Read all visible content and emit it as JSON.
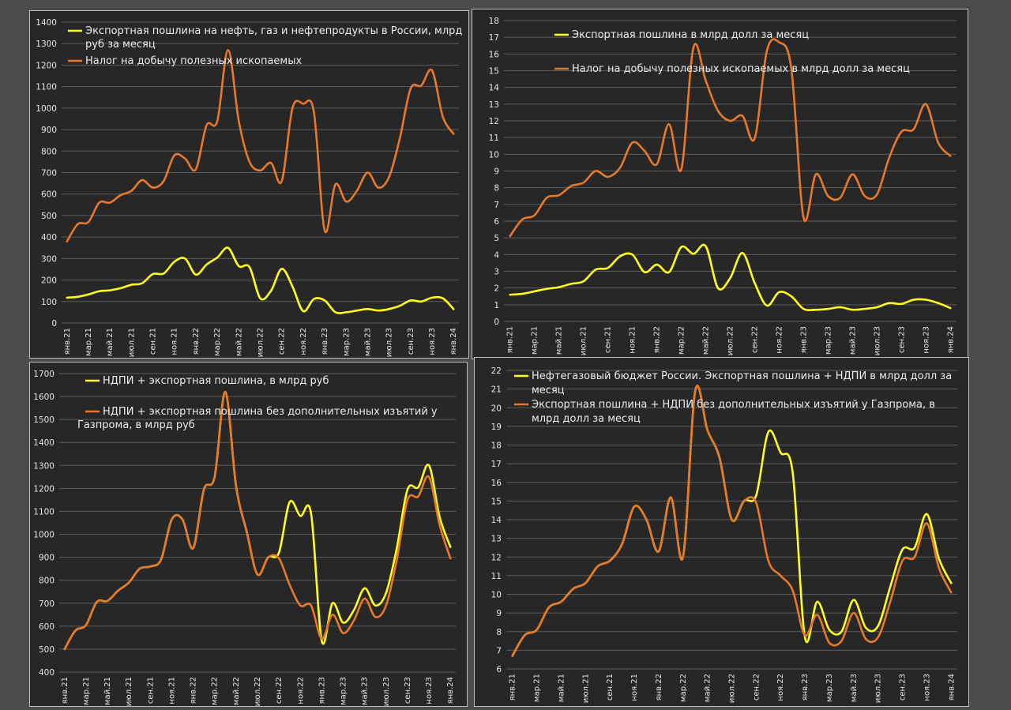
{
  "colors": {
    "yellow": "#ffff1a",
    "orange": "#e8782a",
    "grid": "#5c5c5c",
    "text": "#e4e4e4"
  },
  "chart_data": [
    {
      "type": "line",
      "x": [
        "янв.21",
        "фев.21",
        "мар.21",
        "апр.21",
        "май.21",
        "июн.21",
        "июл.21",
        "авг.21",
        "сен.21",
        "окт.21",
        "ноя.21",
        "дек.21",
        "янв.22",
        "фев.22",
        "мар.22",
        "апр.22",
        "май.22",
        "июн.22",
        "июл.22",
        "авг.22",
        "сен.22",
        "окт.22",
        "ноя.22",
        "дек.22",
        "янв.23",
        "фев.23",
        "мар.23",
        "апр.23",
        "май.23",
        "июн.23",
        "июл.23",
        "авг.23",
        "сен.23",
        "окт.23",
        "ноя.23",
        "дек.23",
        "янв.24"
      ],
      "xticks": [
        "янв.21",
        "мар.21",
        "май.21",
        "июл.21",
        "сен.21",
        "ноя.21",
        "янв.22",
        "мар.22",
        "май.22",
        "июл.22",
        "сен.22",
        "ноя.22",
        "янв.23",
        "мар.23",
        "май.23",
        "июл.23",
        "сен.23",
        "ноя.23",
        "янв.24"
      ],
      "ylim": [
        0,
        1400
      ],
      "yticks": [
        0,
        100,
        200,
        300,
        400,
        500,
        600,
        700,
        800,
        900,
        1000,
        1100,
        1200,
        1300,
        1400
      ],
      "grid": true,
      "legend_position": "top-left",
      "series": [
        {
          "name": "Экспортная пошлина на нефть, газ и нефтепродукты в России, млрд руб за месяц",
          "legend_lines": [
            "Экспортная пошлина на нефть, газ и нефтепродукты в России, млрд",
            "руб за месяц"
          ],
          "color": "#ffff1a",
          "values": [
            118,
            122,
            133,
            148,
            152,
            162,
            178,
            185,
            228,
            230,
            285,
            300,
            225,
            272,
            305,
            350,
            265,
            260,
            115,
            150,
            252,
            170,
            55,
            112,
            105,
            50,
            50,
            58,
            65,
            58,
            65,
            80,
            105,
            100,
            118,
            115,
            65
          ]
        },
        {
          "name": "Налог на добычу полезных ископаемых",
          "legend_lines": [
            "Налог на добычу полезных ископаемых"
          ],
          "color": "#e8782a",
          "values": [
            380,
            460,
            470,
            560,
            560,
            595,
            615,
            665,
            630,
            660,
            780,
            765,
            715,
            920,
            940,
            1270,
            940,
            750,
            710,
            745,
            660,
            1000,
            1020,
            980,
            430,
            645,
            565,
            615,
            700,
            630,
            680,
            860,
            1090,
            1105,
            1175,
            960,
            880
          ]
        }
      ]
    },
    {
      "type": "line",
      "x": [
        "янв.21",
        "фев.21",
        "мар.21",
        "апр.21",
        "май.21",
        "июн.21",
        "июл.21",
        "авг.21",
        "сен.21",
        "окт.21",
        "ноя.21",
        "дек.21",
        "янв.22",
        "фев.22",
        "мар.22",
        "апр.22",
        "май.22",
        "июн.22",
        "июл.22",
        "авг.22",
        "сен.22",
        "окт.22",
        "ноя.22",
        "дек.22",
        "янв.23",
        "фев.23",
        "мар.23",
        "апр.23",
        "май.23",
        "июн.23",
        "июл.23",
        "авг.23",
        "сен.23",
        "окт.23",
        "ноя.23",
        "дек.23",
        "янв.24"
      ],
      "xticks": [
        "янв.21",
        "мар.21",
        "май.21",
        "июл.21",
        "сен.21",
        "ноя.21",
        "янв.22",
        "мар.22",
        "май.22",
        "июл.22",
        "сен.22",
        "ноя.22",
        "янв.23",
        "мар.23",
        "май.23",
        "июл.23",
        "сен.23",
        "ноя.23",
        "янв.24"
      ],
      "ylim": [
        0,
        18
      ],
      "yticks": [
        0,
        1,
        2,
        3,
        4,
        5,
        6,
        7,
        8,
        9,
        10,
        11,
        12,
        13,
        14,
        15,
        16,
        17,
        18
      ],
      "grid": true,
      "legend_position": "top",
      "series": [
        {
          "name": "Экспортная пошлина в млрд долл за месяц",
          "legend_lines": [
            "Экспортная пошлина в млрд долл за месяц"
          ],
          "color": "#ffff1a",
          "values": [
            1.6,
            1.65,
            1.8,
            1.95,
            2.05,
            2.25,
            2.4,
            3.1,
            3.2,
            3.9,
            4.0,
            2.95,
            3.4,
            2.95,
            4.45,
            4.05,
            4.5,
            2.0,
            2.6,
            4.1,
            2.3,
            0.95,
            1.75,
            1.5,
            0.75,
            0.7,
            0.75,
            0.85,
            0.7,
            0.75,
            0.85,
            1.1,
            1.05,
            1.3,
            1.3,
            1.1,
            0.8
          ]
        },
        {
          "name": "Налог на добычу полезных ископаемых в млрд долл за месяц",
          "legend_lines": [
            "Налог на добычу полезных ископаемых в млрд долл за месяц"
          ],
          "color": "#e8782a",
          "values": [
            5.1,
            6.1,
            6.35,
            7.4,
            7.55,
            8.1,
            8.3,
            9.0,
            8.65,
            9.2,
            10.7,
            10.2,
            9.4,
            11.8,
            9.1,
            16.4,
            14.4,
            12.6,
            12.0,
            12.3,
            10.95,
            16.2,
            16.7,
            15.1,
            6.2,
            8.8,
            7.5,
            7.4,
            8.8,
            7.5,
            7.6,
            9.8,
            11.35,
            11.5,
            13.0,
            10.7,
            9.9
          ]
        }
      ]
    },
    {
      "type": "line",
      "x": [
        "янв.21",
        "фев.21",
        "мар.21",
        "апр.21",
        "май.21",
        "июн.21",
        "июл.21",
        "авг.21",
        "сен.21",
        "окт.21",
        "ноя.21",
        "дек.21",
        "янв.22",
        "фев.22",
        "мар.22",
        "апр.22",
        "май.22",
        "июн.22",
        "июл.22",
        "авг.22",
        "сен.22",
        "окт.22",
        "ноя.22",
        "дек.22",
        "янв.23",
        "фев.23",
        "мар.23",
        "апр.23",
        "май.23",
        "июн.23",
        "июл.23",
        "авг.23",
        "сен.23",
        "окт.23",
        "ноя.23",
        "дек.23",
        "янв.24"
      ],
      "xticks": [
        "янв.21",
        "мар.21",
        "май.21",
        "июл.21",
        "сен.21",
        "ноя.21",
        "янв.22",
        "мар.22",
        "май.22",
        "июл.22",
        "сен.22",
        "ноя.22",
        "янв.23",
        "мар.23",
        "май.23",
        "июл.23",
        "сен.23",
        "ноя.23",
        "янв.24"
      ],
      "ylim": [
        400,
        1700
      ],
      "yticks": [
        400,
        500,
        600,
        700,
        800,
        900,
        1000,
        1100,
        1200,
        1300,
        1400,
        1500,
        1600,
        1700
      ],
      "grid": true,
      "legend_position": "top",
      "series": [
        {
          "name": "НДПИ + экспортная пошлина, в млрд руб",
          "legend_lines": [
            "НДПИ + экспортная пошлина, в млрд руб"
          ],
          "color": "#ffff1a",
          "values": [
            500,
            580,
            605,
            705,
            710,
            755,
            790,
            850,
            860,
            890,
            1065,
            1065,
            940,
            1195,
            1250,
            1620,
            1210,
            1010,
            825,
            900,
            920,
            1140,
            1080,
            1090,
            535,
            700,
            615,
            670,
            765,
            690,
            745,
            940,
            1195,
            1205,
            1300,
            1075,
            945
          ]
        },
        {
          "name": "НДПИ + экспортная пошлина без дополнительных изъятий у Газпрома, в млрд руб",
          "legend_lines": [
            "НДПИ + экспортная пошлина без дополнительных изъятий у",
            "Газпрома, в млрд руб"
          ],
          "color": "#e8782a",
          "values": [
            500,
            580,
            605,
            705,
            710,
            755,
            790,
            850,
            860,
            890,
            1065,
            1065,
            940,
            1195,
            1250,
            1620,
            1210,
            1010,
            825,
            900,
            895,
            780,
            690,
            690,
            545,
            650,
            570,
            625,
            720,
            640,
            690,
            890,
            1150,
            1165,
            1250,
            1040,
            895
          ]
        }
      ]
    },
    {
      "type": "line",
      "x": [
        "янв.21",
        "фев.21",
        "мар.21",
        "апр.21",
        "май.21",
        "июн.21",
        "июл.21",
        "авг.21",
        "сен.21",
        "окт.21",
        "ноя.21",
        "дек.21",
        "янв.22",
        "фев.22",
        "мар.22",
        "апр.22",
        "май.22",
        "июн.22",
        "июл.22",
        "авг.22",
        "сен.22",
        "окт.22",
        "ноя.22",
        "дек.22",
        "янв.23",
        "фев.23",
        "мар.23",
        "апр.23",
        "май.23",
        "июн.23",
        "июл.23",
        "авг.23",
        "сен.23",
        "окт.23",
        "ноя.23",
        "дек.23",
        "янв.24"
      ],
      "xticks": [
        "янв.21",
        "мар.21",
        "май.21",
        "июл.21",
        "сен.21",
        "ноя.21",
        "янв.22",
        "мар.22",
        "май.22",
        "июл.22",
        "сен.22",
        "ноя.22",
        "янв.23",
        "мар.23",
        "май.23",
        "июл.23",
        "сен.23",
        "ноя.23",
        "янв.24"
      ],
      "ylim": [
        6,
        22
      ],
      "yticks": [
        6,
        7,
        8,
        9,
        10,
        11,
        12,
        13,
        14,
        15,
        16,
        17,
        18,
        19,
        20,
        21,
        22
      ],
      "grid": true,
      "legend_position": "top",
      "series": [
        {
          "name": "Нефтегазовый бюджет России. Экспортная пошлина + НДПИ в млрд долл за месяц",
          "legend_lines": [
            "Нефтегазовый бюджет России. Экспортная пошлина + НДПИ в млрд долл за",
            "месяц"
          ],
          "color": "#ffff1a",
          "values": [
            6.7,
            7.8,
            8.1,
            9.3,
            9.6,
            10.3,
            10.6,
            11.5,
            11.8,
            12.7,
            14.7,
            14.0,
            12.3,
            15.2,
            12.0,
            20.9,
            18.8,
            17.3,
            14.0,
            15.0,
            15.3,
            18.7,
            17.6,
            16.5,
            7.7,
            9.6,
            8.1,
            8.0,
            9.7,
            8.2,
            8.3,
            10.4,
            12.4,
            12.5,
            14.3,
            11.9,
            10.6
          ]
        },
        {
          "name": "Экспортная пошлина + НДПИ без дополнительных изъятий у Газпрома, в млрд долл за месяц",
          "legend_lines": [
            "Экспортная пошлина + НДПИ без дополнительных изъятий у Газпрома, в",
            "млрд долл за месяц"
          ],
          "color": "#e8782a",
          "values": [
            6.7,
            7.8,
            8.1,
            9.3,
            9.6,
            10.3,
            10.6,
            11.5,
            11.8,
            12.7,
            14.7,
            14.0,
            12.3,
            15.2,
            12.0,
            20.9,
            18.8,
            17.3,
            14.0,
            15.0,
            14.9,
            11.8,
            11.0,
            10.2,
            7.8,
            8.9,
            7.4,
            7.5,
            9.0,
            7.6,
            7.7,
            9.6,
            11.8,
            12.0,
            13.8,
            11.4,
            10.1
          ]
        }
      ]
    }
  ]
}
